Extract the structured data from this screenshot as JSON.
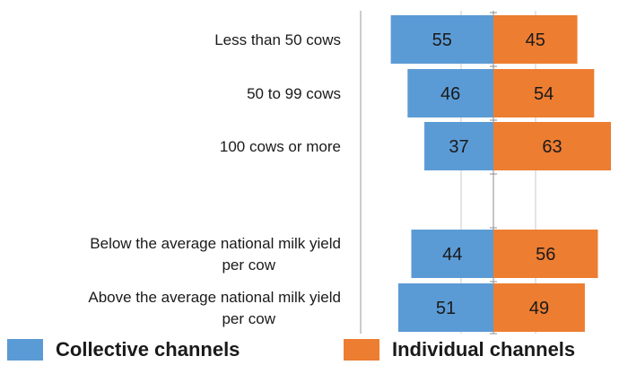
{
  "chart_data": {
    "type": "bar",
    "orientation": "horizontal",
    "stacked": true,
    "categories": [
      "Less than 50 cows",
      "50 to 99 cows",
      "100 cows or more",
      "",
      "Below the average national milk yield per cow",
      "Above the average national milk yield per cow"
    ],
    "series": [
      {
        "name": "Collective channels",
        "values": [
          55,
          46,
          37,
          null,
          44,
          51
        ],
        "color": "#5B9BD5"
      },
      {
        "name": "Individual channels",
        "values": [
          45,
          54,
          63,
          null,
          56,
          49
        ],
        "color": "#ED7D31"
      }
    ],
    "title": "",
    "xlabel": "",
    "ylabel": "",
    "legend_position": "bottom",
    "grid": true
  }
}
